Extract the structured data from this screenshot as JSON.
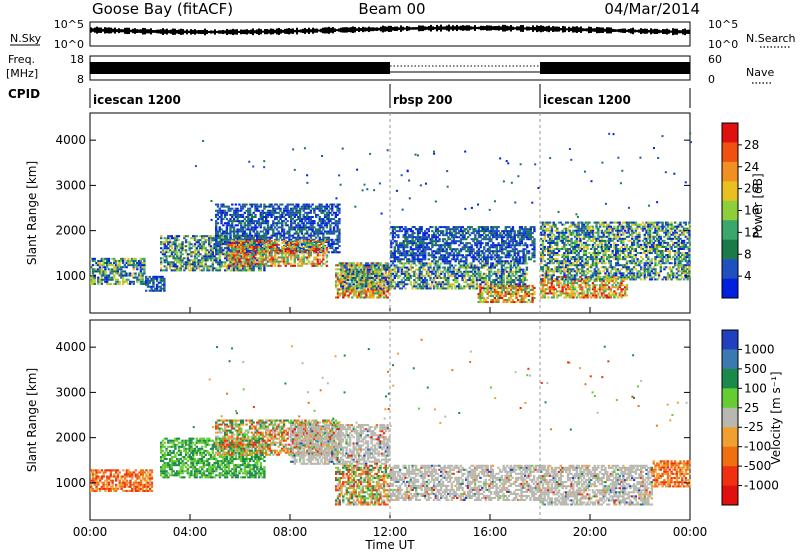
{
  "header": {
    "site": "Goose Bay (fitACF)",
    "beam": "Beam 00",
    "date": "04/Mar/2014"
  },
  "left_labels": {
    "nsky": "N.Sky",
    "freq": "Freq.",
    "freq_unit": "[MHz]",
    "cpid": "CPID"
  },
  "right_labels": {
    "nsearch": "N.Search",
    "nave": "Nave"
  },
  "top_ticks": {
    "noise_left": [
      "10^5",
      "10^0"
    ],
    "noise_right": [
      "10^5",
      "10^0"
    ],
    "freq_left": [
      "18",
      "8"
    ],
    "nave_right": [
      "60",
      "0"
    ]
  },
  "cpid_segments": [
    {
      "label": "icescan 1200",
      "start_hour": 0,
      "end_hour": 12
    },
    {
      "label": "rbsp 200",
      "start_hour": 12,
      "end_hour": 18
    },
    {
      "label": "icescan 1200",
      "start_hour": 18,
      "end_hour": 24
    }
  ],
  "colors": {
    "power": [
      "#0020e0",
      "#2050c0",
      "#1a7a4a",
      "#3aa86a",
      "#8ccf3a",
      "#e8c020",
      "#f09020",
      "#f05010",
      "#e01010"
    ],
    "velocity": [
      "#2040c0",
      "#3a7ab0",
      "#1a8a4a",
      "#66cc33",
      "#b8b8b0",
      "#f0a030",
      "#f07010",
      "#f03010",
      "#e01010"
    ]
  },
  "chart_data": [
    {
      "type": "heatmap",
      "name": "power",
      "xlabel": "Time UT",
      "ylabel": "Slant Range [km]",
      "xlim": [
        0,
        24
      ],
      "ylim": [
        180,
        4600
      ],
      "x_ticks": [
        "00:00",
        "04:00",
        "08:00",
        "12:00",
        "16:00",
        "20:00",
        "00:00"
      ],
      "y_ticks": [
        1000,
        2000,
        3000,
        4000
      ],
      "colorbar": {
        "label": "Power [dB]",
        "ticks": [
          "28",
          "24",
          "20",
          "16",
          "12",
          "8",
          "4"
        ],
        "range": [
          0,
          30
        ]
      },
      "regions": [
        {
          "t0": 0.0,
          "t1": 2.2,
          "r0": 800,
          "r1": 1400,
          "level": "mid"
        },
        {
          "t0": 2.2,
          "t1": 3.0,
          "r0": 650,
          "r1": 1000,
          "level": "low"
        },
        {
          "t0": 2.8,
          "t1": 7.0,
          "r0": 1100,
          "r1": 1900,
          "level": "mid"
        },
        {
          "t0": 5.0,
          "t1": 10.0,
          "r0": 1500,
          "r1": 2600,
          "level": "low"
        },
        {
          "t0": 5.5,
          "t1": 9.5,
          "r0": 1200,
          "r1": 1800,
          "level": "high"
        },
        {
          "t0": 9.8,
          "t1": 12.0,
          "r0": 500,
          "r1": 1300,
          "level": "high"
        },
        {
          "t0": 10.0,
          "t1": 17.5,
          "r0": 700,
          "r1": 1300,
          "level": "mid"
        },
        {
          "t0": 12.0,
          "t1": 17.8,
          "r0": 1300,
          "r1": 2100,
          "level": "low"
        },
        {
          "t0": 15.5,
          "t1": 17.8,
          "r0": 400,
          "r1": 800,
          "level": "high"
        },
        {
          "t0": 18.0,
          "t1": 21.5,
          "r0": 500,
          "r1": 1000,
          "level": "high"
        },
        {
          "t0": 18.0,
          "t1": 24.0,
          "r0": 900,
          "r1": 2200,
          "level": "mid"
        }
      ]
    },
    {
      "type": "heatmap",
      "name": "velocity",
      "xlabel": "Time UT",
      "ylabel": "Slant Range [km]",
      "xlim": [
        0,
        24
      ],
      "ylim": [
        180,
        4600
      ],
      "x_ticks": [
        "00:00",
        "04:00",
        "08:00",
        "12:00",
        "16:00",
        "20:00",
        "00:00"
      ],
      "y_ticks": [
        1000,
        2000,
        3000,
        4000
      ],
      "colorbar": {
        "label": "Velocity [m s^-1]",
        "ticks": [
          "1000",
          "500",
          "100",
          "25",
          "-25",
          "-100",
          "-500",
          "-1000"
        ],
        "range": [
          -1000,
          1000
        ]
      },
      "regions": [
        {
          "t0": 0.0,
          "t1": 2.5,
          "r0": 800,
          "r1": 1300,
          "level": "neg"
        },
        {
          "t0": 2.8,
          "t1": 7.0,
          "r0": 1100,
          "r1": 2000,
          "level": "pos"
        },
        {
          "t0": 5.0,
          "t1": 10.0,
          "r0": 1600,
          "r1": 2400,
          "level": "mix"
        },
        {
          "t0": 8.0,
          "t1": 12.0,
          "r0": 1400,
          "r1": 2300,
          "level": "zero"
        },
        {
          "t0": 9.8,
          "t1": 12.0,
          "r0": 500,
          "r1": 1400,
          "level": "mix"
        },
        {
          "t0": 12.0,
          "t1": 18.0,
          "r0": 600,
          "r1": 1400,
          "level": "zero"
        },
        {
          "t0": 18.0,
          "t1": 22.5,
          "r0": 500,
          "r1": 1400,
          "level": "zero"
        },
        {
          "t0": 22.5,
          "t1": 24.0,
          "r0": 900,
          "r1": 1500,
          "level": "neg"
        }
      ]
    }
  ]
}
